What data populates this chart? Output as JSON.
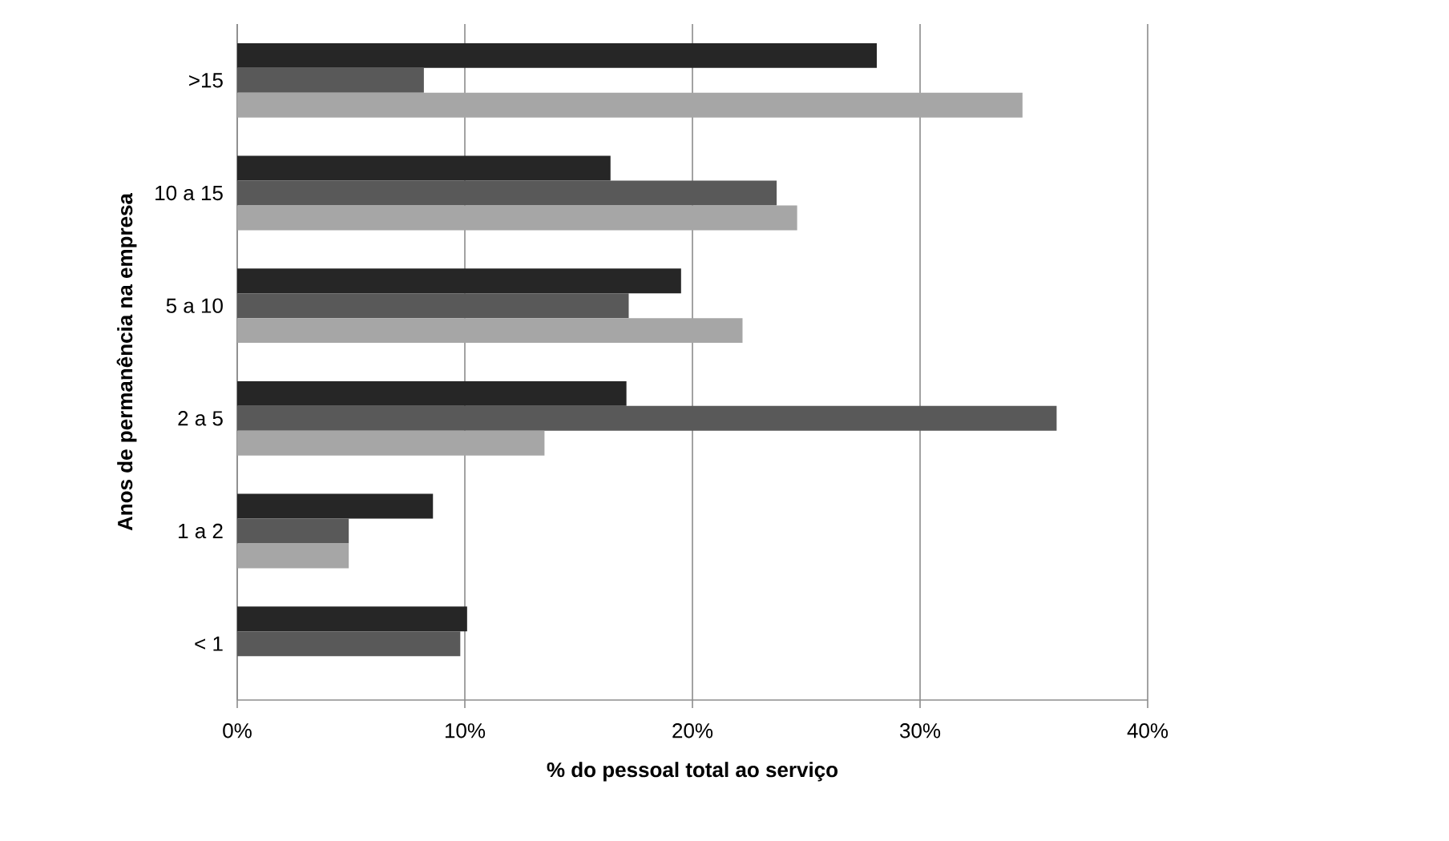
{
  "chart_data": {
    "type": "bar",
    "orientation": "horizontal",
    "xlabel": "% do pessoal total ao serviço",
    "ylabel": "Anos de permanência na empresa",
    "categories": [
      ">15",
      "10 a 15",
      "5 a 10",
      "2 a 5",
      "1 a 2",
      "< 1"
    ],
    "series": [
      {
        "color": "#262626",
        "values": [
          28.1,
          16.4,
          19.5,
          17.1,
          8.6,
          10.1
        ]
      },
      {
        "color": "#595959",
        "values": [
          8.2,
          23.7,
          17.2,
          36.0,
          4.9,
          9.8
        ]
      },
      {
        "color": "#a6a6a6",
        "values": [
          34.5,
          24.6,
          22.2,
          13.5,
          4.9,
          null
        ]
      }
    ],
    "xlim": [
      0,
      40
    ],
    "xticks": [
      {
        "value": 0,
        "label": "0%"
      },
      {
        "value": 10,
        "label": "10%"
      },
      {
        "value": 20,
        "label": "20%"
      },
      {
        "value": 30,
        "label": "30%"
      },
      {
        "value": 40,
        "label": "40%"
      }
    ],
    "grid": "x"
  }
}
